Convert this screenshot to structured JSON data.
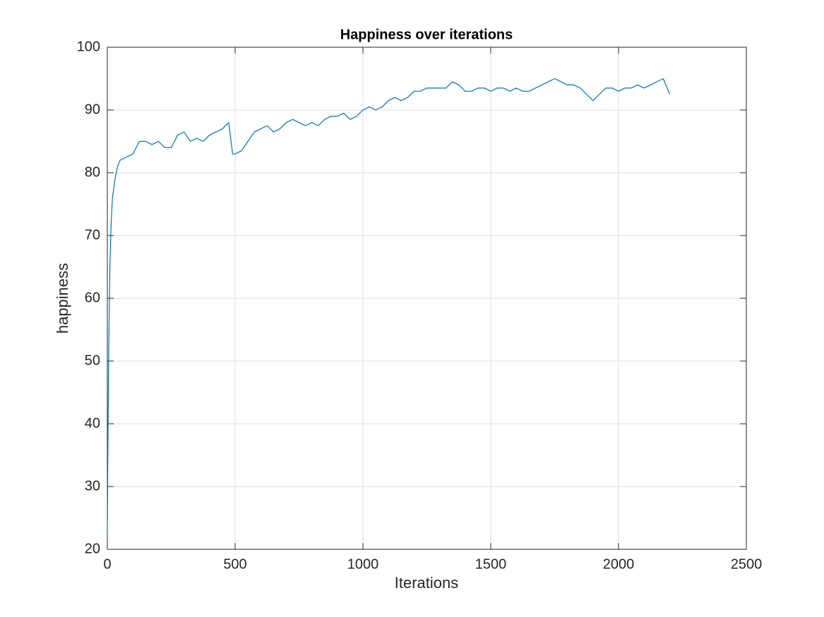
{
  "chart_data": {
    "type": "line",
    "title": "Happiness over iterations",
    "xlabel": "Iterations",
    "ylabel": "happiness",
    "x": [
      0,
      2,
      5,
      10,
      15,
      20,
      30,
      40,
      50,
      75,
      100,
      125,
      150,
      175,
      200,
      225,
      250,
      275,
      300,
      325,
      350,
      375,
      400,
      425,
      450,
      475,
      490,
      500,
      525,
      550,
      575,
      600,
      625,
      650,
      675,
      700,
      725,
      750,
      775,
      800,
      825,
      850,
      875,
      900,
      925,
      950,
      975,
      1000,
      1025,
      1050,
      1075,
      1100,
      1125,
      1150,
      1175,
      1200,
      1225,
      1250,
      1275,
      1300,
      1325,
      1350,
      1375,
      1400,
      1425,
      1450,
      1475,
      1500,
      1525,
      1550,
      1575,
      1600,
      1625,
      1650,
      1675,
      1700,
      1725,
      1750,
      1775,
      1800,
      1825,
      1850,
      1875,
      1900,
      1925,
      1950,
      1975,
      2000,
      2025,
      2050,
      2075,
      2100,
      2125,
      2150,
      2175,
      2190,
      2200
    ],
    "values": [
      22,
      35,
      50,
      65,
      72,
      76,
      79,
      81,
      82,
      82.5,
      83,
      85,
      85,
      84.5,
      85,
      84,
      84,
      86,
      86.5,
      85,
      85.5,
      85,
      86,
      86.5,
      87,
      88,
      83,
      83,
      83.5,
      85,
      86.5,
      87,
      87.5,
      86.5,
      87,
      88,
      88.5,
      88,
      87.5,
      88,
      87.5,
      88.5,
      89,
      89,
      89.5,
      88.5,
      89,
      90,
      90.5,
      90,
      90.5,
      91.5,
      92,
      91.5,
      92,
      93,
      93,
      93.5,
      93.5,
      93.5,
      93.5,
      94.5,
      94,
      93,
      93,
      93.5,
      93.5,
      93,
      93.5,
      93.5,
      93,
      93.5,
      93,
      93,
      93.5,
      94,
      94.5,
      95,
      94.5,
      94,
      94,
      93.5,
      92.5,
      91.5,
      92.5,
      93.5,
      93.5,
      93,
      93.5,
      93.5,
      94,
      93.5,
      94,
      94.5,
      95,
      93.5,
      92.5
    ],
    "color": "#0072bd",
    "xlim": [
      0,
      2500
    ],
    "xticks": [
      0,
      500,
      1000,
      1500,
      2000,
      2500
    ],
    "ylim": [
      20,
      100
    ],
    "yticks": [
      20,
      30,
      40,
      50,
      60,
      70,
      80,
      90,
      100
    ],
    "grid": true
  }
}
